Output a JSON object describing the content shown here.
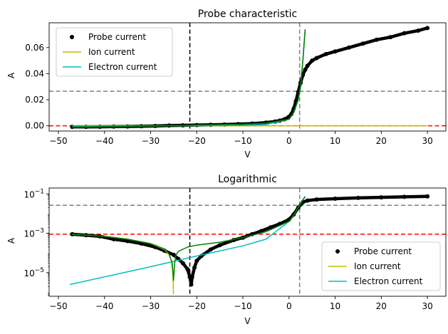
{
  "chart_data": [
    {
      "type": "line",
      "title": "Probe characteristic",
      "xlabel": "V",
      "ylabel": "A",
      "xlim": [
        -52,
        34
      ],
      "ylim": [
        -0.004,
        0.079
      ],
      "x_ticks": [
        -50,
        -40,
        -30,
        -20,
        -10,
        0,
        10,
        20,
        30
      ],
      "x_tick_labels": [
        "−50",
        "−40",
        "−30",
        "−20",
        "−10",
        "0",
        "10",
        "20",
        "30"
      ],
      "y_ticks": [
        0.0,
        0.02,
        0.04,
        0.06
      ],
      "y_tick_labels": [
        "0.00",
        "0.02",
        "0.04",
        "0.06"
      ],
      "legend_position": "upper-left",
      "series": [
        {
          "name": "Probe current",
          "style": "markers",
          "color": "#000000",
          "x": [
            -47,
            -44,
            -41,
            -38,
            -35,
            -32,
            -29,
            -26,
            -23,
            -20,
            -17,
            -14,
            -11,
            -8,
            -5,
            -3,
            -2,
            -1,
            0,
            0.5,
            1,
            1.5,
            2,
            2.5,
            3,
            3.5,
            4,
            5,
            6,
            8,
            10,
            13,
            16,
            19,
            22,
            25,
            28,
            30
          ],
          "y": [
            -0.0008,
            -0.0008,
            -0.0007,
            -0.0006,
            -0.0005,
            -0.0003,
            -0.0001,
            0.0002,
            0.0004,
            0.0006,
            0.0008,
            0.001,
            0.0013,
            0.0017,
            0.0025,
            0.0033,
            0.004,
            0.005,
            0.007,
            0.009,
            0.013,
            0.019,
            0.026,
            0.033,
            0.039,
            0.043,
            0.046,
            0.05,
            0.052,
            0.055,
            0.057,
            0.06,
            0.063,
            0.066,
            0.068,
            0.071,
            0.073,
            0.075
          ]
        },
        {
          "name": "Ion current",
          "style": "line",
          "color": "#bfbf00",
          "x": [
            -47,
            -25,
            30
          ],
          "y": [
            -0.0009,
            0.0,
            0.0
          ]
        },
        {
          "name": "Electron current",
          "style": "line",
          "color": "#00bfbf",
          "x": [
            -47,
            -20,
            -10,
            -5,
            0,
            1,
            2,
            2.5,
            3,
            3.5
          ],
          "y": [
            0.0,
            0.0001,
            0.0004,
            0.001,
            0.005,
            0.01,
            0.02,
            0.03,
            0.05,
            0.074
          ]
        },
        {
          "name": "",
          "style": "line",
          "color": "#008000",
          "x": [
            -47,
            -25,
            -20,
            -10,
            -5,
            0,
            1,
            2,
            2.5,
            3,
            3.5
          ],
          "y": [
            -0.0009,
            0.0,
            0.0006,
            0.0012,
            0.002,
            0.005,
            0.01,
            0.02,
            0.03,
            0.05,
            0.074
          ]
        }
      ],
      "reference_lines": [
        {
          "orientation": "horizontal",
          "value": 0.0,
          "color": "#ff0000",
          "style": "dashed"
        },
        {
          "orientation": "horizontal",
          "value": 0.0265,
          "color": "#808080",
          "style": "dashed"
        },
        {
          "orientation": "vertical",
          "value": -21.5,
          "color": "#000000",
          "style": "dashed"
        },
        {
          "orientation": "vertical",
          "value": 2.3,
          "color": "#808080",
          "style": "dashed"
        }
      ]
    },
    {
      "type": "line",
      "title": "Logarithmic",
      "xlabel": "V",
      "ylabel": "A",
      "y_scale": "log",
      "xlim": [
        -52,
        34
      ],
      "ylim_log10": [
        -6.2,
        -0.7
      ],
      "x_ticks": [
        -50,
        -40,
        -30,
        -20,
        -10,
        0,
        10,
        20,
        30
      ],
      "x_tick_labels": [
        "−50",
        "−40",
        "−30",
        "−20",
        "−10",
        "0",
        "10",
        "20",
        "30"
      ],
      "y_ticks_log10": [
        -5,
        -3,
        -1
      ],
      "y_tick_labels_base": "10",
      "y_tick_labels_exp": [
        "−5",
        "−3",
        "−1"
      ],
      "legend_position": "lower-right",
      "series": [
        {
          "name": "Probe current",
          "style": "markers",
          "color": "#000000",
          "x": [
            -47,
            -44,
            -41,
            -38,
            -35,
            -32,
            -29,
            -27,
            -25,
            -24,
            -23,
            -22,
            -21.5,
            -21.2,
            -21,
            -20.5,
            -20,
            -19,
            -17,
            -15,
            -12,
            -10,
            -8,
            -6,
            -4,
            -2,
            0,
            1,
            2,
            3,
            4,
            6,
            10,
            15,
            20,
            25,
            30
          ],
          "y": [
            0.0009,
            0.0008,
            0.0007,
            0.0005,
            0.0004,
            0.0003,
            0.0002,
            0.00013,
            8e-05,
            5e-05,
            3e-05,
            1.5e-05,
            6e-06,
            2.5e-06,
            6e-06,
            1.8e-05,
            4e-05,
            7e-05,
            0.00015,
            0.00025,
            0.00045,
            0.0006,
            0.0009,
            0.0013,
            0.002,
            0.003,
            0.005,
            0.009,
            0.02,
            0.038,
            0.046,
            0.052,
            0.057,
            0.063,
            0.067,
            0.071,
            0.075
          ]
        },
        {
          "name": "Ion current",
          "style": "line",
          "color": "#bfbf00",
          "x": [
            -47,
            -40,
            -35,
            -30,
            -27,
            -26,
            -25.5,
            -25.2,
            -25.05
          ],
          "y": [
            0.0009,
            0.0007,
            0.0005,
            0.0003,
            0.00015,
            8e-05,
            4e-05,
            1e-05,
            8e-07
          ]
        },
        {
          "name": "Electron current",
          "style": "line",
          "color": "#00bfbf",
          "x": [
            -47.5,
            -30,
            -20,
            -10,
            -5,
            0,
            1,
            2,
            3,
            3.5
          ],
          "y": [
            2.5e-06,
            2e-05,
            7e-05,
            0.00023,
            0.0005,
            0.004,
            0.008,
            0.02,
            0.05,
            0.074
          ]
        },
        {
          "name": "",
          "style": "line",
          "color": "#008000",
          "x": [
            -47,
            -40,
            -35,
            -30,
            -27,
            -26,
            -25.3,
            -25.05,
            -24.8,
            -24.5,
            -24,
            -22,
            -20,
            -15,
            -10,
            -5,
            0,
            1,
            2,
            3,
            3.5
          ],
          "y": [
            0.0009,
            0.0007,
            0.0005,
            0.0003,
            0.00016,
            9e-05,
            3e-05,
            4e-06,
            3e-05,
            8e-05,
            0.00012,
            0.0002,
            0.00025,
            0.00035,
            0.0006,
            0.0012,
            0.004,
            0.008,
            0.02,
            0.05,
            0.074
          ]
        }
      ],
      "reference_lines": [
        {
          "orientation": "horizontal",
          "value": 0.0009,
          "color": "#ff0000",
          "style": "dashed"
        },
        {
          "orientation": "horizontal",
          "value": 0.0265,
          "color": "#808080",
          "style": "dashed"
        },
        {
          "orientation": "vertical",
          "value": -21.5,
          "color": "#000000",
          "style": "dashed"
        },
        {
          "orientation": "vertical",
          "value": 2.3,
          "color": "#808080",
          "style": "dashed"
        }
      ]
    }
  ]
}
